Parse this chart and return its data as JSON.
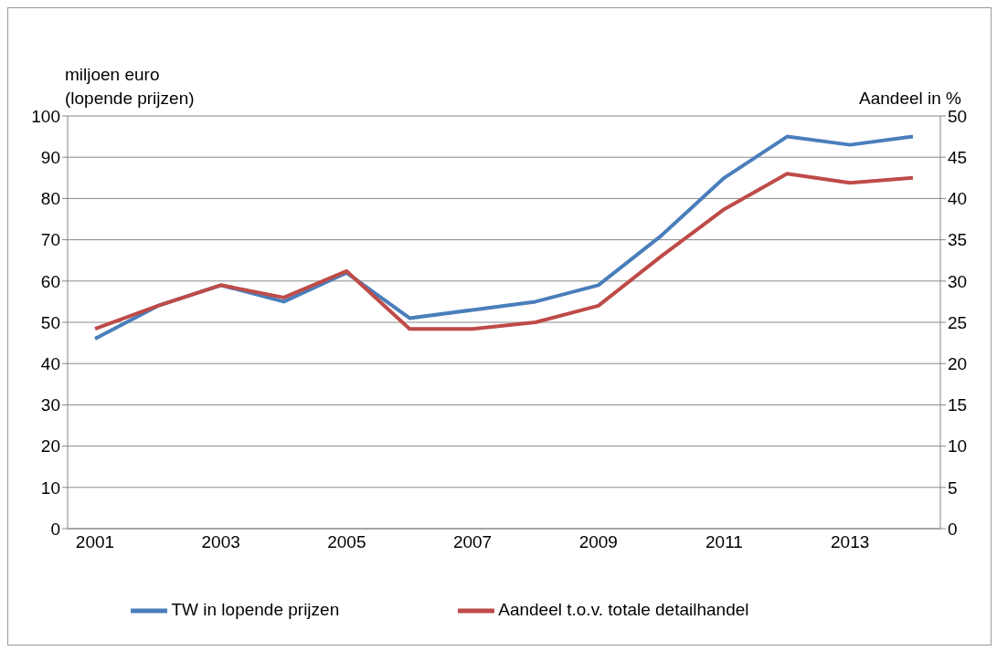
{
  "chart_data": {
    "type": "line",
    "ylabel": "miljoen euro\n(lopende prijzen)",
    "y2label": "Aandeel in %",
    "categories": [
      "2001",
      null,
      "2003",
      null,
      "2005",
      null,
      "2007",
      null,
      "2009",
      null,
      "2011",
      null,
      "2013",
      null
    ],
    "series": [
      {
        "name": "TW in lopende prijzen",
        "color": "#4a7ebb",
        "values": [
          46,
          54,
          59,
          55,
          62,
          51,
          53,
          55,
          59,
          71,
          85,
          95,
          93,
          95
        ]
      },
      {
        "name": "Aandeel t.o.v. totale detailhandel",
        "color": "#be4b48",
        "axis": "y2",
        "values": [
          24.2,
          27,
          29.5,
          28,
          31.2,
          24.2,
          24.2,
          25,
          27,
          33,
          38.7,
          43,
          41.9,
          42.5
        ]
      }
    ],
    "ylim": [
      0,
      100
    ],
    "yticks": [
      0,
      10,
      20,
      30,
      40,
      50,
      60,
      70,
      80,
      90,
      100
    ],
    "y2lim": [
      0,
      50
    ],
    "y2ticks": [
      0,
      5,
      10,
      15,
      20,
      25,
      30,
      35,
      40,
      45,
      50
    ],
    "grid": "y",
    "legend": "bottom",
    "marker": "none",
    "line_style": "solid"
  }
}
